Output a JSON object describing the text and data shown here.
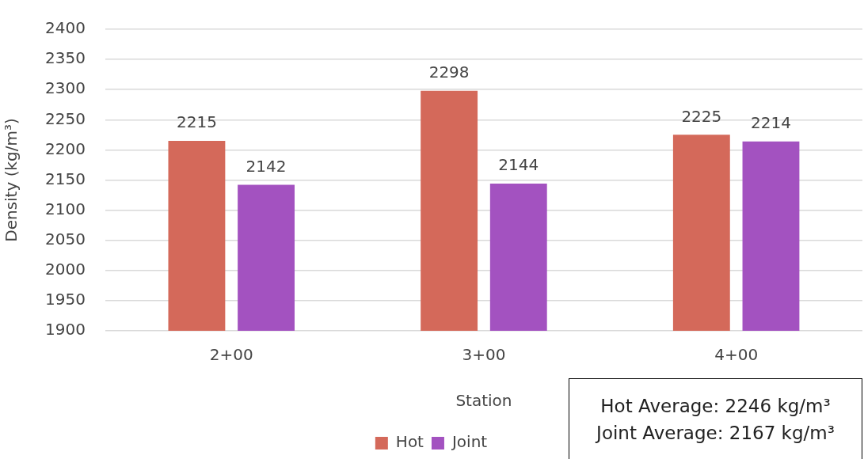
{
  "chart_data": {
    "type": "bar",
    "xlabel": "Station",
    "ylabel": "Density (kg/m³)",
    "categories": [
      "2+00",
      "3+00",
      "4+00"
    ],
    "series": [
      {
        "name": "Hot",
        "color": "#d4695a",
        "values": [
          2215,
          2298,
          2225
        ]
      },
      {
        "name": "Joint",
        "color": "#a352c0",
        "values": [
          2142,
          2144,
          2214
        ]
      }
    ],
    "ylim": [
      1900,
      2400
    ],
    "yticks": [
      1900,
      1950,
      2000,
      2050,
      2100,
      2150,
      2200,
      2250,
      2300,
      2350,
      2400
    ],
    "grid": "y",
    "legend": "bottom",
    "data_labels": true,
    "annotations": [
      "Hot Average: 2246 kg/m³",
      "Joint Average: 2167 kg/m³"
    ]
  }
}
